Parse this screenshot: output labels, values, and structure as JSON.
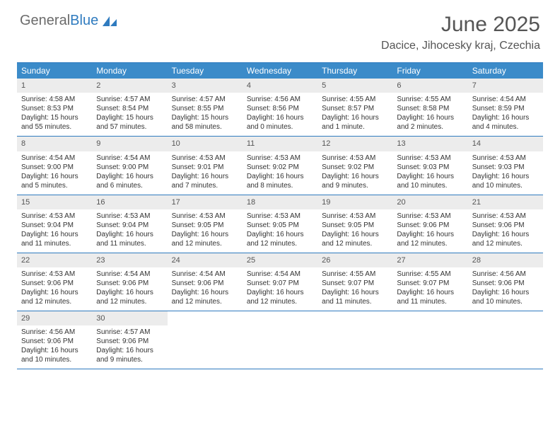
{
  "logo": {
    "text1": "General",
    "text2": "Blue"
  },
  "title": "June 2025",
  "location": "Dacice, Jihocesky kraj, Czechia",
  "colors": {
    "header_bar": "#3b8bc9",
    "rule": "#2f7bbf",
    "daynum_bg": "#ececec",
    "text": "#333333",
    "muted": "#555555",
    "white": "#ffffff"
  },
  "typography": {
    "title_fontsize": 30,
    "location_fontsize": 16,
    "dow_fontsize": 12,
    "body_fontsize": 10
  },
  "days_of_week": [
    "Sunday",
    "Monday",
    "Tuesday",
    "Wednesday",
    "Thursday",
    "Friday",
    "Saturday"
  ],
  "weeks": [
    [
      {
        "n": "1",
        "sr": "Sunrise: 4:58 AM",
        "ss": "Sunset: 8:53 PM",
        "dl": "Daylight: 15 hours and 55 minutes."
      },
      {
        "n": "2",
        "sr": "Sunrise: 4:57 AM",
        "ss": "Sunset: 8:54 PM",
        "dl": "Daylight: 15 hours and 57 minutes."
      },
      {
        "n": "3",
        "sr": "Sunrise: 4:57 AM",
        "ss": "Sunset: 8:55 PM",
        "dl": "Daylight: 15 hours and 58 minutes."
      },
      {
        "n": "4",
        "sr": "Sunrise: 4:56 AM",
        "ss": "Sunset: 8:56 PM",
        "dl": "Daylight: 16 hours and 0 minutes."
      },
      {
        "n": "5",
        "sr": "Sunrise: 4:55 AM",
        "ss": "Sunset: 8:57 PM",
        "dl": "Daylight: 16 hours and 1 minute."
      },
      {
        "n": "6",
        "sr": "Sunrise: 4:55 AM",
        "ss": "Sunset: 8:58 PM",
        "dl": "Daylight: 16 hours and 2 minutes."
      },
      {
        "n": "7",
        "sr": "Sunrise: 4:54 AM",
        "ss": "Sunset: 8:59 PM",
        "dl": "Daylight: 16 hours and 4 minutes."
      }
    ],
    [
      {
        "n": "8",
        "sr": "Sunrise: 4:54 AM",
        "ss": "Sunset: 9:00 PM",
        "dl": "Daylight: 16 hours and 5 minutes."
      },
      {
        "n": "9",
        "sr": "Sunrise: 4:54 AM",
        "ss": "Sunset: 9:00 PM",
        "dl": "Daylight: 16 hours and 6 minutes."
      },
      {
        "n": "10",
        "sr": "Sunrise: 4:53 AM",
        "ss": "Sunset: 9:01 PM",
        "dl": "Daylight: 16 hours and 7 minutes."
      },
      {
        "n": "11",
        "sr": "Sunrise: 4:53 AM",
        "ss": "Sunset: 9:02 PM",
        "dl": "Daylight: 16 hours and 8 minutes."
      },
      {
        "n": "12",
        "sr": "Sunrise: 4:53 AM",
        "ss": "Sunset: 9:02 PM",
        "dl": "Daylight: 16 hours and 9 minutes."
      },
      {
        "n": "13",
        "sr": "Sunrise: 4:53 AM",
        "ss": "Sunset: 9:03 PM",
        "dl": "Daylight: 16 hours and 10 minutes."
      },
      {
        "n": "14",
        "sr": "Sunrise: 4:53 AM",
        "ss": "Sunset: 9:03 PM",
        "dl": "Daylight: 16 hours and 10 minutes."
      }
    ],
    [
      {
        "n": "15",
        "sr": "Sunrise: 4:53 AM",
        "ss": "Sunset: 9:04 PM",
        "dl": "Daylight: 16 hours and 11 minutes."
      },
      {
        "n": "16",
        "sr": "Sunrise: 4:53 AM",
        "ss": "Sunset: 9:04 PM",
        "dl": "Daylight: 16 hours and 11 minutes."
      },
      {
        "n": "17",
        "sr": "Sunrise: 4:53 AM",
        "ss": "Sunset: 9:05 PM",
        "dl": "Daylight: 16 hours and 12 minutes."
      },
      {
        "n": "18",
        "sr": "Sunrise: 4:53 AM",
        "ss": "Sunset: 9:05 PM",
        "dl": "Daylight: 16 hours and 12 minutes."
      },
      {
        "n": "19",
        "sr": "Sunrise: 4:53 AM",
        "ss": "Sunset: 9:05 PM",
        "dl": "Daylight: 16 hours and 12 minutes."
      },
      {
        "n": "20",
        "sr": "Sunrise: 4:53 AM",
        "ss": "Sunset: 9:06 PM",
        "dl": "Daylight: 16 hours and 12 minutes."
      },
      {
        "n": "21",
        "sr": "Sunrise: 4:53 AM",
        "ss": "Sunset: 9:06 PM",
        "dl": "Daylight: 16 hours and 12 minutes."
      }
    ],
    [
      {
        "n": "22",
        "sr": "Sunrise: 4:53 AM",
        "ss": "Sunset: 9:06 PM",
        "dl": "Daylight: 16 hours and 12 minutes."
      },
      {
        "n": "23",
        "sr": "Sunrise: 4:54 AM",
        "ss": "Sunset: 9:06 PM",
        "dl": "Daylight: 16 hours and 12 minutes."
      },
      {
        "n": "24",
        "sr": "Sunrise: 4:54 AM",
        "ss": "Sunset: 9:06 PM",
        "dl": "Daylight: 16 hours and 12 minutes."
      },
      {
        "n": "25",
        "sr": "Sunrise: 4:54 AM",
        "ss": "Sunset: 9:07 PM",
        "dl": "Daylight: 16 hours and 12 minutes."
      },
      {
        "n": "26",
        "sr": "Sunrise: 4:55 AM",
        "ss": "Sunset: 9:07 PM",
        "dl": "Daylight: 16 hours and 11 minutes."
      },
      {
        "n": "27",
        "sr": "Sunrise: 4:55 AM",
        "ss": "Sunset: 9:07 PM",
        "dl": "Daylight: 16 hours and 11 minutes."
      },
      {
        "n": "28",
        "sr": "Sunrise: 4:56 AM",
        "ss": "Sunset: 9:06 PM",
        "dl": "Daylight: 16 hours and 10 minutes."
      }
    ],
    [
      {
        "n": "29",
        "sr": "Sunrise: 4:56 AM",
        "ss": "Sunset: 9:06 PM",
        "dl": "Daylight: 16 hours and 10 minutes."
      },
      {
        "n": "30",
        "sr": "Sunrise: 4:57 AM",
        "ss": "Sunset: 9:06 PM",
        "dl": "Daylight: 16 hours and 9 minutes."
      },
      null,
      null,
      null,
      null,
      null
    ]
  ]
}
